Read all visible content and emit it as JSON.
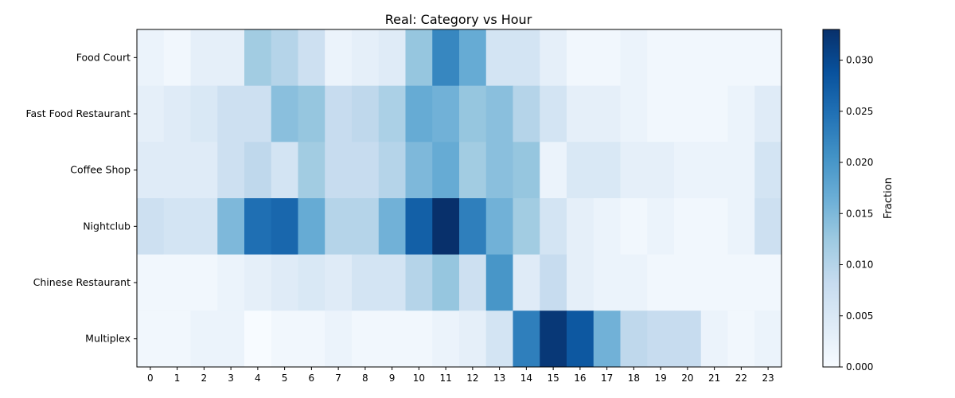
{
  "chart_data": {
    "type": "heatmap",
    "title": "Real: Category vs Hour",
    "xlabel": "",
    "ylabel": "",
    "x": [
      "0",
      "1",
      "2",
      "3",
      "4",
      "5",
      "6",
      "7",
      "8",
      "9",
      "10",
      "11",
      "12",
      "13",
      "14",
      "15",
      "16",
      "17",
      "18",
      "19",
      "20",
      "21",
      "22",
      "23"
    ],
    "y": [
      "Food Court",
      "Fast Food Restaurant",
      "Coffee Shop",
      "Nightclub",
      "Chinese Restaurant",
      "Multiplex"
    ],
    "values": [
      [
        0.002,
        0.001,
        0.003,
        0.003,
        0.012,
        0.01,
        0.007,
        0.002,
        0.003,
        0.004,
        0.013,
        0.022,
        0.017,
        0.006,
        0.006,
        0.003,
        0.001,
        0.001,
        0.002,
        0.001,
        0.001,
        0.001,
        0.001,
        0.001
      ],
      [
        0.003,
        0.004,
        0.005,
        0.007,
        0.007,
        0.014,
        0.013,
        0.008,
        0.009,
        0.011,
        0.017,
        0.016,
        0.013,
        0.014,
        0.01,
        0.006,
        0.003,
        0.003,
        0.002,
        0.001,
        0.001,
        0.001,
        0.002,
        0.004
      ],
      [
        0.004,
        0.004,
        0.004,
        0.007,
        0.009,
        0.006,
        0.012,
        0.008,
        0.008,
        0.01,
        0.015,
        0.017,
        0.012,
        0.014,
        0.013,
        0.002,
        0.005,
        0.005,
        0.003,
        0.003,
        0.002,
        0.002,
        0.002,
        0.006
      ],
      [
        0.007,
        0.006,
        0.006,
        0.015,
        0.025,
        0.026,
        0.017,
        0.01,
        0.01,
        0.016,
        0.027,
        0.033,
        0.023,
        0.016,
        0.012,
        0.006,
        0.003,
        0.002,
        0.001,
        0.002,
        0.001,
        0.001,
        0.002,
        0.007
      ],
      [
        0.001,
        0.001,
        0.001,
        0.002,
        0.003,
        0.004,
        0.005,
        0.004,
        0.006,
        0.006,
        0.01,
        0.013,
        0.007,
        0.02,
        0.004,
        0.008,
        0.003,
        0.002,
        0.002,
        0.001,
        0.001,
        0.001,
        0.001,
        0.001
      ],
      [
        0.001,
        0.001,
        0.002,
        0.002,
        0.0,
        0.001,
        0.001,
        0.002,
        0.001,
        0.001,
        0.001,
        0.002,
        0.003,
        0.006,
        0.023,
        0.032,
        0.028,
        0.016,
        0.009,
        0.008,
        0.008,
        0.002,
        0.001,
        0.002
      ]
    ],
    "colorbar": {
      "label": "Fraction",
      "min": 0.0,
      "max": 0.033,
      "ticks": [
        0.0,
        0.005,
        0.01,
        0.015,
        0.02,
        0.025,
        0.03
      ],
      "tick_labels": [
        "0.000",
        "0.005",
        "0.010",
        "0.015",
        "0.020",
        "0.025",
        "0.030"
      ]
    },
    "colormap": [
      "#f7fbff",
      "#deebf7",
      "#c6dbef",
      "#9ecae1",
      "#6baed6",
      "#4292c6",
      "#2171b5",
      "#08519c",
      "#08306b"
    ],
    "grid": false
  }
}
